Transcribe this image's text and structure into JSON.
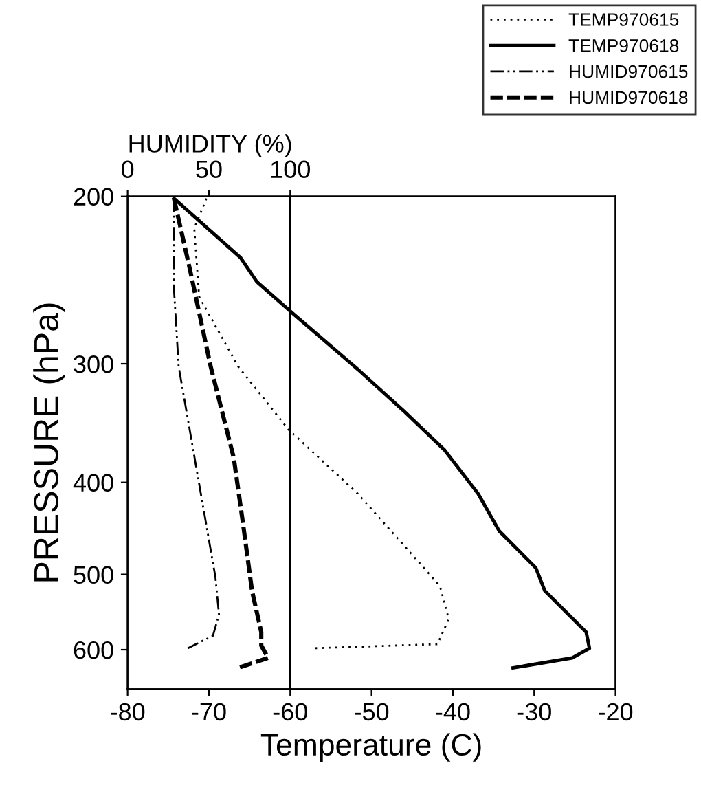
{
  "chart_data": {
    "type": "line",
    "xlabel": "Temperature (C)",
    "ylabel": "PRESSURE (hPa)",
    "x2label": "HUMIDITY (%)",
    "xlim": [
      -80,
      -20
    ],
    "xticks": [
      -80,
      -70,
      -60,
      -50,
      -40,
      -30,
      -20
    ],
    "x2lim": [
      0,
      300
    ],
    "x2ticks": [
      0,
      50,
      100
    ],
    "ylim": [
      660,
      200
    ],
    "yticks": [
      200,
      300,
      400,
      500,
      600
    ],
    "log": "y",
    "grid": false,
    "legend": "top right",
    "marker": "none",
    "ref_lines": [
      {
        "axis": "x",
        "value": -60,
        "color": "#000000",
        "line_style": "solid"
      }
    ],
    "series": [
      {
        "name": "TEMP970615",
        "color": "#000000",
        "line_style": "dotted",
        "x": [
          -70.3,
          -71.8,
          -71.2,
          -66.4,
          -60.2,
          -51.7,
          -41.6,
          -40.5,
          -41.9,
          -57.4
        ],
        "values": [
          201,
          216,
          255,
          302,
          352,
          411,
          514,
          557,
          592,
          598
        ]
      },
      {
        "name": "TEMP970618",
        "color": "#000000",
        "line_style": "solid",
        "x": [
          -74.3,
          -66.1,
          -64.1,
          -59.8,
          -51.7,
          -46.1,
          -41.0,
          -36.9,
          -34.3,
          -29.8,
          -28.7,
          -23.6,
          -23.2,
          -25.3,
          -32.6
        ],
        "values": [
          201,
          232,
          246,
          265,
          304,
          336,
          370,
          411,
          450,
          492,
          520,
          575,
          598,
          612,
          627
        ]
      },
      {
        "name": "HUMID970615",
        "color": "#000000",
        "line_style": "dashdot",
        "axis": "x2",
        "x": [
          28.5,
          28.5,
          31.4,
          42.6,
          54.0,
          56.2,
          52.5,
          37.0
        ],
        "values": [
          201,
          250,
          302,
          389,
          503,
          551,
          580,
          598
        ]
      },
      {
        "name": "HUMID970618",
        "color": "#000000",
        "line_style": "dashed",
        "axis": "x2",
        "x": [
          28.5,
          38.4,
          51.1,
          65.3,
          70.9,
          76.5,
          82.2,
          82.2,
          86.4,
          68.1
        ],
        "values": [
          201,
          239,
          302,
          377,
          441,
          520,
          575,
          594,
          612,
          627
        ]
      }
    ]
  }
}
